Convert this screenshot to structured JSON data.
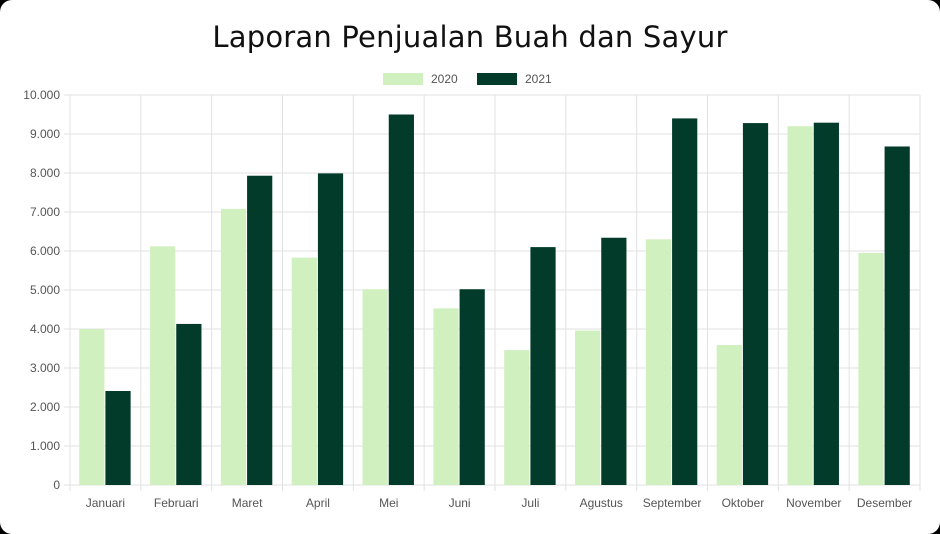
{
  "chart_data": {
    "type": "bar",
    "title": "Laporan Penjualan Buah dan Sayur",
    "xlabel": "",
    "ylabel": "",
    "categories": [
      "Januari",
      "Februari",
      "Maret",
      "April",
      "Mei",
      "Juni",
      "Juli",
      "Agustus",
      "September",
      "Oktober",
      "November",
      "Desember"
    ],
    "series": [
      {
        "name": "2020",
        "color": "#d1f0c0",
        "values": [
          4000,
          6120,
          7080,
          5830,
          5020,
          4530,
          3460,
          3960,
          6300,
          3590,
          9200,
          5950
        ]
      },
      {
        "name": "2021",
        "color": "#023b2a",
        "values": [
          2410,
          4130,
          7930,
          7990,
          9500,
          5020,
          6100,
          6340,
          9400,
          9280,
          9290,
          8680
        ]
      }
    ],
    "ylim": [
      0,
      10000
    ],
    "yticks": [
      0,
      1000,
      2000,
      3000,
      4000,
      5000,
      6000,
      7000,
      8000,
      9000,
      10000
    ],
    "ytick_labels": [
      "0",
      "1.000",
      "2.000",
      "3.000",
      "4.000",
      "5.000",
      "6.000",
      "7.000",
      "8.000",
      "9.000",
      "10.000"
    ],
    "grid": true,
    "legend_position": "top-center"
  }
}
